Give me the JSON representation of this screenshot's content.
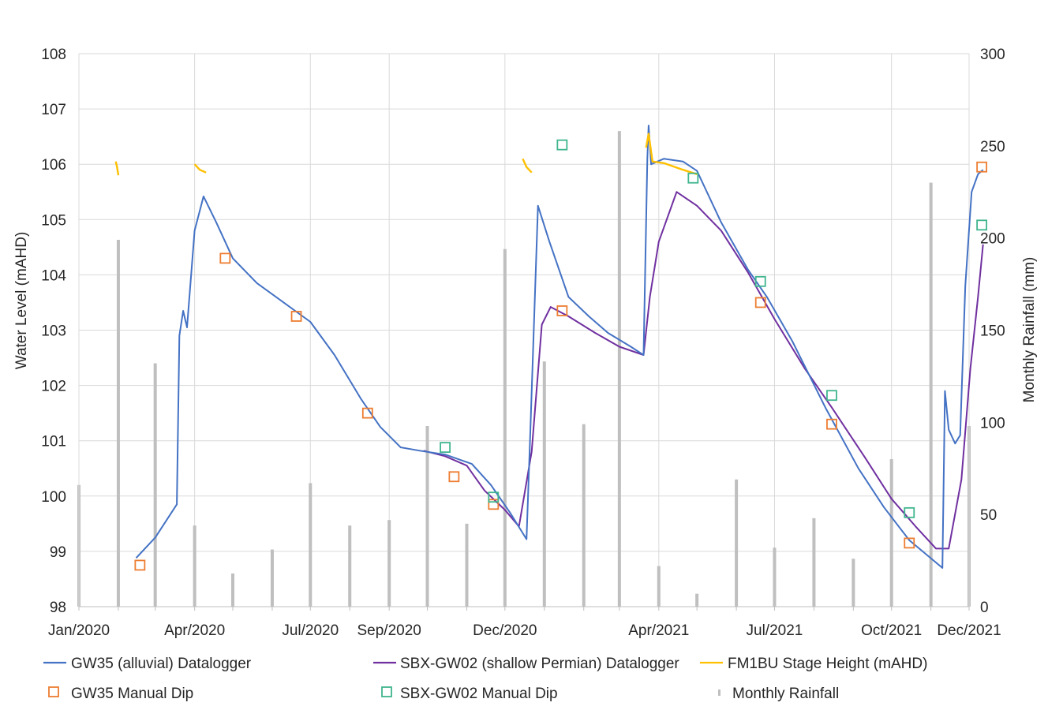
{
  "chart_data": {
    "type": "line",
    "title": "",
    "ylabel": "Water Level (mAHD)",
    "y2label": "Monthly Rainfall (mm)",
    "ylim": [
      98,
      108
    ],
    "y2lim": [
      0,
      300
    ],
    "yticks": [
      "98",
      "99",
      "100",
      "101",
      "102",
      "103",
      "104",
      "105",
      "106",
      "107",
      "108"
    ],
    "y2ticks": [
      "0",
      "50",
      "100",
      "150",
      "200",
      "250",
      "300"
    ],
    "xlim": [
      "2020-01-01",
      "2021-12-01"
    ],
    "xticks": [
      "Jan/2020",
      "Apr/2020",
      "Jul/2020",
      "Sep/2020",
      "Dec/2020",
      "Apr/2021",
      "Jul/2021",
      "Oct/2021",
      "Dec/2021"
    ],
    "xtick_dates": [
      "2020-01-01",
      "2020-04-01",
      "2020-07-01",
      "2020-09-01",
      "2020-12-01",
      "2021-04-01",
      "2021-07-01",
      "2021-10-01",
      "2021-12-01"
    ],
    "grid": true,
    "legend_position": "bottom",
    "colors": {
      "gw35": "#4472C4",
      "sbx": "#7030A0",
      "fm1bu": "#FFC000",
      "gw35_dip": "#ED7D31",
      "sbx_dip": "#3FB58E",
      "rain": "#BFBFBF"
    },
    "series": [
      {
        "name": "GW35 (alluvial) Datalogger",
        "key": "gw35",
        "kind": "line",
        "axis": "left",
        "points": [
          [
            "2020-02-15",
            98.88
          ],
          [
            "2020-03-01",
            99.25
          ],
          [
            "2020-03-18",
            99.85
          ],
          [
            "2020-03-20",
            102.9
          ],
          [
            "2020-03-23",
            103.35
          ],
          [
            "2020-03-26",
            103.05
          ],
          [
            "2020-04-01",
            104.8
          ],
          [
            "2020-04-08",
            105.42
          ],
          [
            "2020-04-18",
            104.95
          ],
          [
            "2020-05-01",
            104.3
          ],
          [
            "2020-05-20",
            103.85
          ],
          [
            "2020-06-10",
            103.5
          ],
          [
            "2020-07-01",
            103.15
          ],
          [
            "2020-07-20",
            102.55
          ],
          [
            "2020-08-10",
            101.75
          ],
          [
            "2020-08-25",
            101.25
          ],
          [
            "2020-09-10",
            100.88
          ],
          [
            "2020-09-25",
            100.82
          ],
          [
            "2020-10-15",
            100.75
          ],
          [
            "2020-11-05",
            100.58
          ],
          [
            "2020-11-20",
            100.2
          ],
          [
            "2020-12-05",
            99.7
          ],
          [
            "2020-12-18",
            99.22
          ],
          [
            "2020-12-21",
            101.2
          ],
          [
            "2020-12-27",
            105.25
          ],
          [
            "2021-01-05",
            104.6
          ],
          [
            "2021-01-20",
            103.6
          ],
          [
            "2021-02-05",
            103.25
          ],
          [
            "2021-02-20",
            102.95
          ],
          [
            "2021-03-10",
            102.7
          ],
          [
            "2021-03-20",
            102.55
          ],
          [
            "2021-03-23",
            106.1
          ],
          [
            "2021-03-24",
            106.7
          ],
          [
            "2021-03-26",
            106.0
          ],
          [
            "2021-04-05",
            106.1
          ],
          [
            "2021-04-20",
            106.05
          ],
          [
            "2021-05-01",
            105.88
          ],
          [
            "2021-05-20",
            104.95
          ],
          [
            "2021-06-10",
            104.1
          ],
          [
            "2021-06-25",
            103.6
          ],
          [
            "2021-07-15",
            102.8
          ],
          [
            "2021-08-10",
            101.6
          ],
          [
            "2021-09-05",
            100.5
          ],
          [
            "2021-09-25",
            99.8
          ],
          [
            "2021-10-15",
            99.2
          ],
          [
            "2021-11-10",
            98.7
          ],
          [
            "2021-11-12",
            101.9
          ],
          [
            "2021-11-15",
            101.2
          ],
          [
            "2021-11-20",
            100.95
          ],
          [
            "2021-11-24",
            101.1
          ],
          [
            "2021-11-28",
            103.8
          ],
          [
            "2021-12-03",
            105.5
          ],
          [
            "2021-12-08",
            105.82
          ],
          [
            "2021-12-12",
            105.9
          ]
        ]
      },
      {
        "name": "SBX-GW02 (shallow Permian) Datalogger",
        "key": "sbx",
        "kind": "line",
        "axis": "left",
        "points": [
          [
            "2020-09-28",
            100.82
          ],
          [
            "2020-10-15",
            100.72
          ],
          [
            "2020-11-01",
            100.55
          ],
          [
            "2020-11-15",
            100.1
          ],
          [
            "2020-12-01",
            99.75
          ],
          [
            "2020-12-12",
            99.45
          ],
          [
            "2020-12-22",
            100.8
          ],
          [
            "2020-12-30",
            103.1
          ],
          [
            "2021-01-06",
            103.42
          ],
          [
            "2021-01-20",
            103.25
          ],
          [
            "2021-02-10",
            102.95
          ],
          [
            "2021-03-01",
            102.7
          ],
          [
            "2021-03-20",
            102.55
          ],
          [
            "2021-03-25",
            103.6
          ],
          [
            "2021-04-01",
            104.6
          ],
          [
            "2021-04-15",
            105.5
          ],
          [
            "2021-05-01",
            105.25
          ],
          [
            "2021-05-20",
            104.8
          ],
          [
            "2021-06-10",
            104.05
          ],
          [
            "2021-07-01",
            103.2
          ],
          [
            "2021-07-25",
            102.3
          ],
          [
            "2021-08-15",
            101.6
          ],
          [
            "2021-09-10",
            100.7
          ],
          [
            "2021-10-01",
            99.95
          ],
          [
            "2021-10-20",
            99.45
          ],
          [
            "2021-11-05",
            99.05
          ],
          [
            "2021-11-15",
            99.05
          ],
          [
            "2021-11-25",
            100.3
          ],
          [
            "2021-12-02",
            102.3
          ],
          [
            "2021-12-08",
            103.6
          ],
          [
            "2021-12-12",
            104.55
          ]
        ]
      },
      {
        "name": "FM1BU Stage Height (mAHD)",
        "key": "fm1bu",
        "kind": "line",
        "axis": "left",
        "segments": [
          [
            [
              "2020-01-30",
              106.05
            ],
            [
              "2020-01-31",
              105.95
            ],
            [
              "2020-02-01",
              105.8
            ]
          ],
          [
            [
              "2020-04-01",
              106.0
            ],
            [
              "2020-04-05",
              105.9
            ],
            [
              "2020-04-10",
              105.85
            ]
          ],
          [
            [
              "2020-12-15",
              106.1
            ],
            [
              "2020-12-18",
              105.95
            ],
            [
              "2020-12-22",
              105.85
            ]
          ],
          [
            [
              "2021-03-22",
              106.3
            ],
            [
              "2021-03-24",
              106.55
            ],
            [
              "2021-03-27",
              106.05
            ],
            [
              "2021-04-05",
              106.02
            ],
            [
              "2021-04-20",
              105.9
            ],
            [
              "2021-05-01",
              105.82
            ]
          ]
        ]
      },
      {
        "name": "GW35 Manual Dip",
        "key": "gw35_dip",
        "kind": "marker",
        "axis": "left",
        "points": [
          [
            "2020-02-18",
            98.75
          ],
          [
            "2020-04-25",
            104.3
          ],
          [
            "2020-06-20",
            103.25
          ],
          [
            "2020-08-15",
            101.5
          ],
          [
            "2020-10-22",
            100.35
          ],
          [
            "2020-11-22",
            99.85
          ],
          [
            "2021-01-15",
            103.35
          ],
          [
            "2021-06-20",
            103.5
          ],
          [
            "2021-08-15",
            101.3
          ],
          [
            "2021-10-15",
            99.15
          ],
          [
            "2021-12-11",
            105.95
          ]
        ]
      },
      {
        "name": "SBX-GW02 Manual Dip",
        "key": "sbx_dip",
        "kind": "marker",
        "axis": "left",
        "points": [
          [
            "2020-10-15",
            100.88
          ],
          [
            "2020-11-22",
            99.98
          ],
          [
            "2021-01-15",
            106.35
          ],
          [
            "2021-04-28",
            105.75
          ],
          [
            "2021-06-20",
            103.88
          ],
          [
            "2021-08-15",
            101.82
          ],
          [
            "2021-10-15",
            99.7
          ],
          [
            "2021-12-11",
            104.9
          ]
        ]
      },
      {
        "name": "Monthly Rainfall",
        "key": "rain",
        "kind": "bar",
        "axis": "right",
        "points": [
          [
            "2020-01-01",
            66
          ],
          [
            "2020-02-01",
            199
          ],
          [
            "2020-03-01",
            132
          ],
          [
            "2020-04-01",
            44
          ],
          [
            "2020-05-01",
            18
          ],
          [
            "2020-06-01",
            31
          ],
          [
            "2020-07-01",
            67
          ],
          [
            "2020-08-01",
            44
          ],
          [
            "2020-09-01",
            47
          ],
          [
            "2020-10-01",
            98
          ],
          [
            "2020-11-01",
            45
          ],
          [
            "2020-12-01",
            194
          ],
          [
            "2021-01-01",
            133
          ],
          [
            "2021-02-01",
            99
          ],
          [
            "2021-03-01",
            258
          ],
          [
            "2021-04-01",
            22
          ],
          [
            "2021-05-01",
            7
          ],
          [
            "2021-06-01",
            69
          ],
          [
            "2021-07-01",
            32
          ],
          [
            "2021-08-01",
            48
          ],
          [
            "2021-09-01",
            26
          ],
          [
            "2021-10-01",
            80
          ],
          [
            "2021-11-01",
            230
          ],
          [
            "2021-12-01",
            98
          ]
        ]
      }
    ]
  }
}
